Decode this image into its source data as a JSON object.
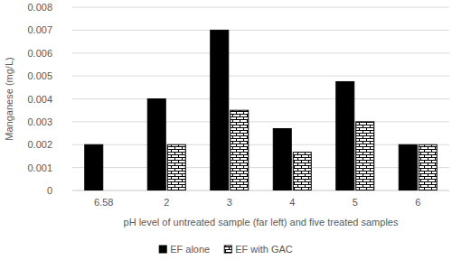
{
  "chart_data": {
    "type": "bar",
    "x_label": "pH level of untreated sample (far left) and five treated samples",
    "y_label": "Manganese (mg/L)",
    "categories": [
      "6.58",
      "2",
      "3",
      "4",
      "5",
      "6"
    ],
    "series": [
      {
        "name": "EF alone",
        "color": "#000000",
        "values": [
          0.002,
          0.004,
          0.007,
          0.0027,
          0.00475,
          0.002
        ]
      },
      {
        "name": "EF with GAC",
        "color": "#000000",
        "marker": "brick",
        "values": [
          null,
          0.002,
          0.0035,
          0.00167,
          0.003,
          0.002
        ]
      }
    ],
    "ylim": [
      0,
      0.008
    ],
    "yticks": [
      0,
      0.001,
      0.002,
      0.003,
      0.004,
      0.005,
      0.006,
      0.007,
      0.008
    ],
    "grid": true,
    "legend": "bottom"
  }
}
